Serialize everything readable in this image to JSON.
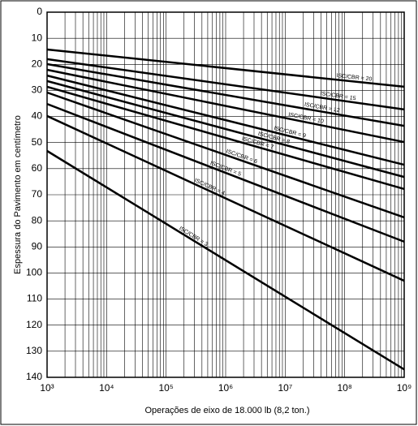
{
  "chart_data": {
    "type": "line",
    "x_label": "Operações de eixo de 18.000 lb (8,2 ton.)",
    "y_label": "Espessura do Pavimento em centímetro",
    "x": [
      1000,
      1000000000
    ],
    "series": [
      {
        "name": "ISC/CBR = 20",
        "color": "#000000",
        "values": [
          14.3,
          28.6
        ]
      },
      {
        "name": "ISC/CBR = 15",
        "color": "#000000",
        "values": [
          18.0,
          37.3
        ]
      },
      {
        "name": "ISC/CBR = 12",
        "color": "#000000",
        "values": [
          19.9,
          43.6
        ]
      },
      {
        "name": "ISC/CBR = 10",
        "color": "#000000",
        "values": [
          22.1,
          49.8
        ]
      },
      {
        "name": "ISC/CBR = 9",
        "color": "#000000",
        "values": [
          24.3,
          58.5
        ]
      },
      {
        "name": "ISC/CBR = 8",
        "color": "#000000",
        "values": [
          26.4,
          63.2
        ]
      },
      {
        "name": "ISC/CBR = 7",
        "color": "#000000",
        "values": [
          28.6,
          67.8
        ]
      },
      {
        "name": "ISC/CBR = 6",
        "color": "#000000",
        "values": [
          30.8,
          78.7
        ]
      },
      {
        "name": "ISC/CBR = 5",
        "color": "#000000",
        "values": [
          35.2,
          88.0
        ]
      },
      {
        "name": "ISC/CBR = 4",
        "color": "#000000",
        "values": [
          39.8,
          103.0
        ]
      },
      {
        "name": "ISC/CBR = 3",
        "color": "#000000",
        "values": [
          53.2,
          137.0
        ]
      }
    ],
    "xlim": [
      1000,
      1000000000
    ],
    "xticks": [
      {
        "value": 1000,
        "label": "10³"
      },
      {
        "value": 10000,
        "label": "10⁴"
      },
      {
        "value": 100000,
        "label": "10⁵"
      },
      {
        "value": 1000000,
        "label": "10⁶"
      },
      {
        "value": 10000000,
        "label": "10⁷"
      },
      {
        "value": 100000000,
        "label": "10⁸"
      },
      {
        "value": 1000000000,
        "label": "10⁹"
      }
    ],
    "x_log": true,
    "ylim": [
      0,
      140
    ],
    "yticks": [
      0,
      10,
      20,
      30,
      40,
      50,
      60,
      70,
      80,
      90,
      100,
      110,
      120,
      130,
      140
    ],
    "y_inverted": true,
    "grid": true
  }
}
